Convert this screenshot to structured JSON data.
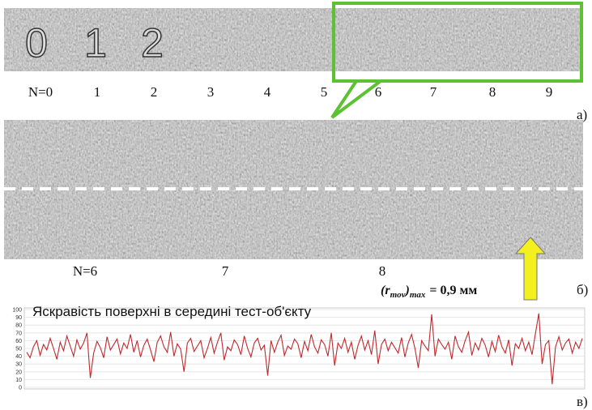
{
  "panel_a": {
    "strip_digits": [
      "0",
      "1",
      "2"
    ],
    "labels": [
      "N=0",
      "1",
      "2",
      "3",
      "4",
      "5",
      "6",
      "7",
      "8",
      "9"
    ],
    "tag": "а)"
  },
  "panel_b": {
    "labels": [
      "N=6",
      "7",
      "8"
    ],
    "formula": [
      "(r",
      "mov",
      ")",
      "max",
      "= 0,9 мм"
    ],
    "tag": "б)"
  },
  "chart_data": {
    "type": "line",
    "title": "Яскравість поверхні в середині тест-об'єкту",
    "tag": "в)",
    "color": "#c0282d",
    "grid": true,
    "ylim": [
      0,
      100
    ],
    "yticks": [
      0,
      10,
      20,
      30,
      40,
      50,
      60,
      70,
      80,
      90,
      100
    ],
    "values": [
      45,
      38,
      52,
      60,
      41,
      55,
      48,
      63,
      50,
      36,
      58,
      47,
      66,
      53,
      40,
      61,
      49,
      57,
      70,
      12,
      44,
      59,
      51,
      38,
      65,
      48,
      55,
      62,
      43,
      57,
      50,
      68,
      45,
      60,
      39,
      54,
      62,
      48,
      33,
      58,
      66,
      52,
      45,
      71,
      40,
      56,
      49,
      20,
      57,
      63,
      46,
      53,
      60,
      38,
      50,
      64,
      44,
      58,
      70,
      35,
      52,
      47,
      61,
      55,
      42,
      66,
      50,
      39,
      57,
      63,
      48,
      54,
      15,
      60,
      45,
      58,
      67,
      41,
      53,
      49,
      62,
      56,
      38,
      59,
      47,
      68,
      52,
      44,
      61,
      55,
      40,
      70,
      28,
      57,
      50,
      63,
      45,
      58,
      36,
      54,
      66,
      48,
      60,
      42,
      73,
      30,
      55,
      62,
      47,
      58,
      51,
      44,
      64,
      39,
      57,
      68,
      50,
      25,
      60,
      53,
      47,
      94,
      40,
      62,
      55,
      49,
      58,
      36,
      66,
      52,
      45,
      60,
      71,
      41,
      57,
      48,
      63,
      54,
      39,
      59,
      46,
      67,
      52,
      44,
      61,
      28,
      56,
      50,
      63,
      47,
      58,
      42,
      69,
      95,
      30,
      55,
      60,
      4,
      52,
      65,
      48,
      57,
      62,
      44,
      58,
      50,
      63
    ]
  }
}
